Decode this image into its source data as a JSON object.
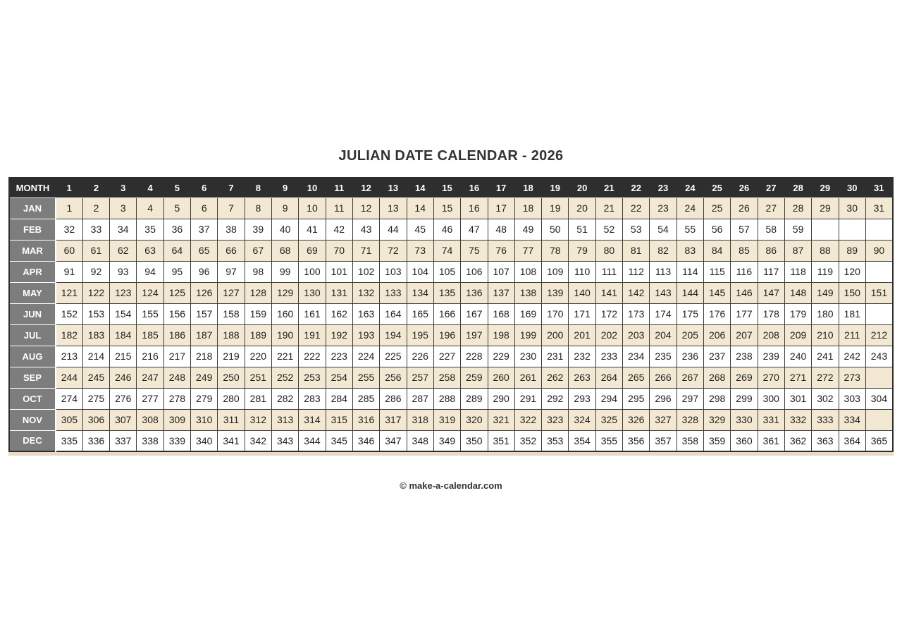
{
  "page": {
    "title": "JULIAN DATE CALENDAR - 2026",
    "footer": "© make-a-calendar.com"
  },
  "colors": {
    "header_bg": "#2e2e2e",
    "header_text": "#ffffff",
    "month_bg": "#7d7d7d",
    "month_text": "#ffffff",
    "row_beige": "#f3e8d1",
    "row_white": "#ffffff",
    "cell_border": "#3d3d3d",
    "bottom_strip": "#e7dbc1",
    "cell_text": "#212121",
    "heading_text": "#333333"
  },
  "calendar": {
    "corner_label": "MONTH",
    "day_headers": [
      "1",
      "2",
      "3",
      "4",
      "5",
      "6",
      "7",
      "8",
      "9",
      "10",
      "11",
      "12",
      "13",
      "14",
      "15",
      "16",
      "17",
      "18",
      "19",
      "20",
      "21",
      "22",
      "23",
      "24",
      "25",
      "26",
      "27",
      "28",
      "29",
      "30",
      "31"
    ],
    "months": [
      {
        "label": "JAN",
        "shaded": true,
        "values": [
          1,
          2,
          3,
          4,
          5,
          6,
          7,
          8,
          9,
          10,
          11,
          12,
          13,
          14,
          15,
          16,
          17,
          18,
          19,
          20,
          21,
          22,
          23,
          24,
          25,
          26,
          27,
          28,
          29,
          30,
          31
        ]
      },
      {
        "label": "FEB",
        "shaded": false,
        "values": [
          32,
          33,
          34,
          35,
          36,
          37,
          38,
          39,
          40,
          41,
          42,
          43,
          44,
          45,
          46,
          47,
          48,
          49,
          50,
          51,
          52,
          53,
          54,
          55,
          56,
          57,
          58,
          59,
          null,
          null,
          null
        ]
      },
      {
        "label": "MAR",
        "shaded": true,
        "values": [
          60,
          61,
          62,
          63,
          64,
          65,
          66,
          67,
          68,
          69,
          70,
          71,
          72,
          73,
          74,
          75,
          76,
          77,
          78,
          79,
          80,
          81,
          82,
          83,
          84,
          85,
          86,
          87,
          88,
          89,
          90
        ]
      },
      {
        "label": "APR",
        "shaded": false,
        "values": [
          91,
          92,
          93,
          94,
          95,
          96,
          97,
          98,
          99,
          100,
          101,
          102,
          103,
          104,
          105,
          106,
          107,
          108,
          109,
          110,
          111,
          112,
          113,
          114,
          115,
          116,
          117,
          118,
          119,
          120,
          null
        ]
      },
      {
        "label": "MAY",
        "shaded": true,
        "values": [
          121,
          122,
          123,
          124,
          125,
          126,
          127,
          128,
          129,
          130,
          131,
          132,
          133,
          134,
          135,
          136,
          137,
          138,
          139,
          140,
          141,
          142,
          143,
          144,
          145,
          146,
          147,
          148,
          149,
          150,
          151
        ]
      },
      {
        "label": "JUN",
        "shaded": false,
        "values": [
          152,
          153,
          154,
          155,
          156,
          157,
          158,
          159,
          160,
          161,
          162,
          163,
          164,
          165,
          166,
          167,
          168,
          169,
          170,
          171,
          172,
          173,
          174,
          175,
          176,
          177,
          178,
          179,
          180,
          181,
          null
        ]
      },
      {
        "label": "JUL",
        "shaded": true,
        "values": [
          182,
          183,
          184,
          185,
          186,
          187,
          188,
          189,
          190,
          191,
          192,
          193,
          194,
          195,
          196,
          197,
          198,
          199,
          200,
          201,
          202,
          203,
          204,
          205,
          206,
          207,
          208,
          209,
          210,
          211,
          212
        ]
      },
      {
        "label": "AUG",
        "shaded": false,
        "values": [
          213,
          214,
          215,
          216,
          217,
          218,
          219,
          220,
          221,
          222,
          223,
          224,
          225,
          226,
          227,
          228,
          229,
          230,
          231,
          232,
          233,
          234,
          235,
          236,
          237,
          238,
          239,
          240,
          241,
          242,
          243
        ]
      },
      {
        "label": "SEP",
        "shaded": true,
        "values": [
          244,
          245,
          246,
          247,
          248,
          249,
          250,
          251,
          252,
          253,
          254,
          255,
          256,
          257,
          258,
          259,
          260,
          261,
          262,
          263,
          264,
          265,
          266,
          267,
          268,
          269,
          270,
          271,
          272,
          273,
          null
        ]
      },
      {
        "label": "OCT",
        "shaded": false,
        "values": [
          274,
          275,
          276,
          277,
          278,
          279,
          280,
          281,
          282,
          283,
          284,
          285,
          286,
          287,
          288,
          289,
          290,
          291,
          292,
          293,
          294,
          295,
          296,
          297,
          298,
          299,
          300,
          301,
          302,
          303,
          304
        ]
      },
      {
        "label": "NOV",
        "shaded": true,
        "values": [
          305,
          306,
          307,
          308,
          309,
          310,
          311,
          312,
          313,
          314,
          315,
          316,
          317,
          318,
          319,
          320,
          321,
          322,
          323,
          324,
          325,
          326,
          327,
          328,
          329,
          330,
          331,
          332,
          333,
          334,
          null
        ]
      },
      {
        "label": "DEC",
        "shaded": false,
        "values": [
          335,
          336,
          337,
          338,
          339,
          340,
          341,
          342,
          343,
          344,
          345,
          346,
          347,
          348,
          349,
          350,
          351,
          352,
          353,
          354,
          355,
          356,
          357,
          358,
          359,
          360,
          361,
          362,
          363,
          364,
          365
        ]
      }
    ]
  }
}
